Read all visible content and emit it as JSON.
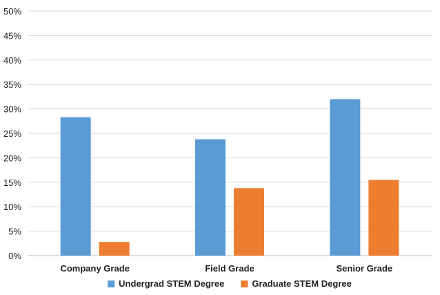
{
  "chart_data": {
    "type": "bar",
    "title": "",
    "xlabel": "",
    "ylabel": "",
    "ylim": [
      0,
      50
    ],
    "yticks": [
      "0%",
      "5%",
      "10%",
      "15%",
      "20%",
      "25%",
      "30%",
      "35%",
      "40%",
      "45%",
      "50%"
    ],
    "y_unit": "%",
    "grid": true,
    "legend_position": "bottom",
    "categories": [
      "Company Grade",
      "Field Grade",
      "Senior Grade"
    ],
    "series": [
      {
        "name": "Undergrad STEM Degree",
        "color": "#5b9bd5",
        "values": [
          28.3,
          23.8,
          32.0
        ]
      },
      {
        "name": "Graduate STEM Degree",
        "color": "#ed7d31",
        "values": [
          2.8,
          13.8,
          15.5
        ]
      }
    ]
  }
}
